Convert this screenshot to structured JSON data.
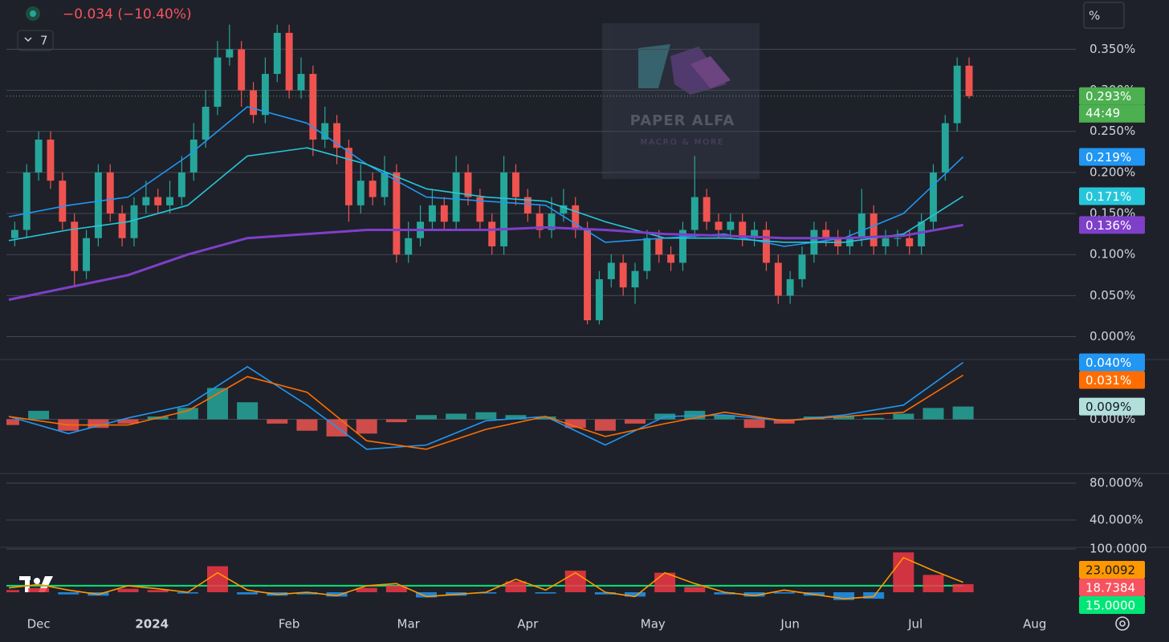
{
  "ui": {
    "change": "−0.034 (−10.40%)",
    "indicators": "7",
    "scale_mode": "%",
    "watermark_title": "PAPER ALFA",
    "watermark_subtitle": "MACRO & MORE"
  },
  "chart_data": [
    {
      "type": "candlestick",
      "xlim": [
        -0.4,
        178.9
      ],
      "xticks": [
        {
          "value": 5,
          "label": "Dec"
        },
        {
          "value": 24,
          "label": "2024"
        },
        {
          "value": 47,
          "label": "Feb"
        },
        {
          "value": 67,
          "label": "Mar"
        },
        {
          "value": 87,
          "label": "Apr"
        },
        {
          "value": 108,
          "label": "May"
        },
        {
          "value": 131,
          "label": "Jun"
        },
        {
          "value": 152,
          "label": "Jul"
        },
        {
          "value": 172,
          "label": "Aug"
        }
      ],
      "ylim": [
        -0.02,
        0.41
      ],
      "yticks": [
        {
          "value": 0.35,
          "label": "0.350%"
        },
        {
          "value": 0.3,
          "label": "0.300%"
        },
        {
          "value": 0.25,
          "label": "0.250%"
        },
        {
          "value": 0.2,
          "label": "0.200%"
        },
        {
          "value": 0.15,
          "label": "0.150%"
        },
        {
          "value": 0.1,
          "label": "0.100%"
        },
        {
          "value": 0.05,
          "label": "0.050%"
        },
        {
          "value": 0,
          "label": "0.000%"
        }
      ],
      "grid": true,
      "series": [
        {
          "type": "candlestick",
          "up_color": "#26a69a",
          "down_color": "#ef5350",
          "color": "#4caf50",
          "last_label": "0.293%",
          "countdown": "44:49",
          "x": [
            1,
            3,
            5,
            7,
            9,
            11,
            13,
            15,
            17,
            19,
            21,
            23,
            25,
            27,
            29,
            31,
            33,
            35,
            37,
            39,
            41,
            43,
            45,
            47,
            49,
            51,
            53,
            55,
            57,
            59,
            61,
            63,
            65,
            67,
            69,
            71,
            73,
            75,
            77,
            79,
            81,
            83,
            85,
            87,
            89,
            91,
            93,
            95,
            97,
            99,
            101,
            103,
            105,
            107,
            109,
            111,
            113,
            115,
            117,
            119,
            121,
            123,
            125,
            127,
            129,
            131,
            133,
            135,
            137,
            139,
            141,
            143,
            145,
            147,
            149,
            151,
            153,
            155,
            157,
            159,
            161
          ],
          "open": [
            0.12,
            0.13,
            0.2,
            0.24,
            0.19,
            0.14,
            0.08,
            0.12,
            0.2,
            0.15,
            0.12,
            0.16,
            0.17,
            0.16,
            0.17,
            0.2,
            0.24,
            0.28,
            0.34,
            0.35,
            0.3,
            0.27,
            0.32,
            0.37,
            0.3,
            0.32,
            0.24,
            0.26,
            0.23,
            0.16,
            0.19,
            0.17,
            0.2,
            0.1,
            0.12,
            0.14,
            0.16,
            0.14,
            0.2,
            0.17,
            0.14,
            0.11,
            0.2,
            0.17,
            0.15,
            0.13,
            0.15,
            0.16,
            0.13,
            0.02,
            0.07,
            0.09,
            0.06,
            0.08,
            0.12,
            0.1,
            0.09,
            0.13,
            0.17,
            0.14,
            0.13,
            0.14,
            0.12,
            0.13,
            0.09,
            0.05,
            0.07,
            0.1,
            0.13,
            0.12,
            0.11,
            0.12,
            0.15,
            0.11,
            0.12,
            0.12,
            0.11,
            0.14,
            0.2,
            0.26,
            0.33
          ],
          "high": [
            0.14,
            0.21,
            0.25,
            0.25,
            0.2,
            0.15,
            0.13,
            0.21,
            0.21,
            0.16,
            0.17,
            0.19,
            0.18,
            0.19,
            0.22,
            0.26,
            0.3,
            0.36,
            0.38,
            0.36,
            0.31,
            0.34,
            0.38,
            0.38,
            0.34,
            0.33,
            0.28,
            0.27,
            0.24,
            0.21,
            0.2,
            0.22,
            0.21,
            0.14,
            0.16,
            0.18,
            0.17,
            0.22,
            0.21,
            0.18,
            0.15,
            0.22,
            0.21,
            0.18,
            0.16,
            0.17,
            0.18,
            0.17,
            0.14,
            0.08,
            0.1,
            0.1,
            0.09,
            0.13,
            0.13,
            0.11,
            0.14,
            0.22,
            0.18,
            0.15,
            0.15,
            0.15,
            0.14,
            0.14,
            0.1,
            0.08,
            0.11,
            0.14,
            0.14,
            0.13,
            0.13,
            0.18,
            0.16,
            0.13,
            0.13,
            0.13,
            0.15,
            0.21,
            0.27,
            0.34,
            0.34
          ],
          "low": [
            0.11,
            0.12,
            0.19,
            0.18,
            0.13,
            0.06,
            0.07,
            0.11,
            0.14,
            0.11,
            0.11,
            0.15,
            0.15,
            0.15,
            0.16,
            0.19,
            0.23,
            0.27,
            0.33,
            0.28,
            0.26,
            0.26,
            0.31,
            0.29,
            0.29,
            0.22,
            0.23,
            0.21,
            0.14,
            0.15,
            0.16,
            0.16,
            0.09,
            0.09,
            0.11,
            0.13,
            0.13,
            0.13,
            0.16,
            0.13,
            0.1,
            0.1,
            0.16,
            0.14,
            0.12,
            0.12,
            0.14,
            0.12,
            0.015,
            0.015,
            0.06,
            0.05,
            0.04,
            0.07,
            0.09,
            0.08,
            0.08,
            0.12,
            0.13,
            0.12,
            0.12,
            0.11,
            0.11,
            0.08,
            0.04,
            0.04,
            0.06,
            0.09,
            0.11,
            0.1,
            0.1,
            0.11,
            0.1,
            0.1,
            0.11,
            0.1,
            0.1,
            0.13,
            0.19,
            0.25,
            0.29
          ],
          "close": [
            0.13,
            0.2,
            0.24,
            0.19,
            0.14,
            0.08,
            0.12,
            0.2,
            0.15,
            0.12,
            0.16,
            0.17,
            0.16,
            0.17,
            0.2,
            0.24,
            0.28,
            0.34,
            0.35,
            0.3,
            0.27,
            0.32,
            0.37,
            0.3,
            0.32,
            0.24,
            0.26,
            0.23,
            0.16,
            0.19,
            0.17,
            0.2,
            0.1,
            0.12,
            0.14,
            0.16,
            0.14,
            0.2,
            0.17,
            0.14,
            0.11,
            0.2,
            0.17,
            0.15,
            0.13,
            0.15,
            0.16,
            0.13,
            0.02,
            0.07,
            0.09,
            0.06,
            0.08,
            0.12,
            0.1,
            0.09,
            0.13,
            0.17,
            0.14,
            0.13,
            0.14,
            0.12,
            0.13,
            0.09,
            0.05,
            0.07,
            0.1,
            0.13,
            0.12,
            0.11,
            0.12,
            0.15,
            0.11,
            0.12,
            0.12,
            0.11,
            0.14,
            0.2,
            0.26,
            0.33,
            0.293
          ]
        },
        {
          "type": "line",
          "color": "#2196f3",
          "last_label": "0.219%",
          "x": [
            0,
            10,
            20,
            30,
            40,
            50,
            60,
            70,
            80,
            90,
            100,
            110,
            120,
            130,
            140,
            150,
            160
          ],
          "values": [
            0.146,
            0.16,
            0.17,
            0.22,
            0.28,
            0.26,
            0.21,
            0.17,
            0.165,
            0.16,
            0.115,
            0.12,
            0.125,
            0.11,
            0.12,
            0.15,
            0.219
          ]
        },
        {
          "type": "line",
          "color": "#26c6da",
          "last_label": "0.171%",
          "x": [
            0,
            10,
            20,
            30,
            40,
            50,
            60,
            70,
            80,
            90,
            100,
            110,
            120,
            130,
            140,
            150,
            160
          ],
          "values": [
            0.117,
            0.13,
            0.14,
            0.16,
            0.22,
            0.23,
            0.21,
            0.18,
            0.17,
            0.165,
            0.14,
            0.12,
            0.12,
            0.115,
            0.115,
            0.125,
            0.171
          ]
        },
        {
          "type": "line",
          "color": "#7e3fc9",
          "width": 3,
          "last_label": "0.136%",
          "x": [
            0,
            10,
            20,
            30,
            40,
            50,
            60,
            70,
            80,
            90,
            100,
            110,
            120,
            130,
            140,
            150,
            160
          ],
          "values": [
            0.045,
            0.06,
            0.075,
            0.1,
            0.12,
            0.125,
            0.13,
            0.13,
            0.13,
            0.133,
            0.13,
            0.125,
            0.123,
            0.12,
            0.12,
            0.123,
            0.136
          ]
        }
      ]
    },
    {
      "type": "line",
      "ylim": [
        -0.038,
        0.042
      ],
      "yticks": [
        {
          "value": 0,
          "label": "0.000%"
        }
      ],
      "grid": true,
      "series": [
        {
          "type": "histogram",
          "color": "#26a69a",
          "neg_color": "#ef5350",
          "badge_color": "#b2dfdb",
          "last_label": "0.009%",
          "x": [
            0,
            5,
            10,
            15,
            20,
            25,
            30,
            35,
            40,
            45,
            50,
            55,
            60,
            65,
            70,
            75,
            80,
            85,
            90,
            95,
            100,
            105,
            110,
            115,
            120,
            125,
            130,
            135,
            140,
            145,
            150,
            155,
            160
          ],
          "values": [
            -0.004,
            0.006,
            -0.008,
            -0.006,
            -0.003,
            0.002,
            0.008,
            0.022,
            0.012,
            -0.003,
            -0.008,
            -0.012,
            -0.01,
            -0.002,
            0.003,
            0.004,
            0.005,
            0.003,
            0.002,
            -0.006,
            -0.008,
            -0.003,
            0.004,
            0.006,
            0.003,
            -0.006,
            -0.003,
            0.002,
            0.002,
            0.001,
            0.004,
            0.008,
            0.009
          ]
        },
        {
          "type": "line",
          "color": "#2196f3",
          "last_label": "0.040%",
          "x": [
            0,
            10,
            20,
            30,
            40,
            50,
            60,
            70,
            80,
            90,
            100,
            110,
            120,
            130,
            140,
            150,
            160
          ],
          "values": [
            0.002,
            -0.01,
            0.001,
            0.01,
            0.037,
            0.01,
            -0.021,
            -0.018,
            -0.001,
            0.002,
            -0.018,
            0.002,
            0.003,
            -0.001,
            0.003,
            0.01,
            0.04
          ]
        },
        {
          "type": "line",
          "color": "#ff6d00",
          "last_label": "0.031%",
          "x": [
            0,
            10,
            20,
            30,
            40,
            50,
            60,
            70,
            80,
            90,
            100,
            110,
            120,
            130,
            140,
            150,
            160
          ],
          "values": [
            0.002,
            -0.004,
            -0.004,
            0.006,
            0.03,
            0.019,
            -0.015,
            -0.021,
            -0.007,
            0.002,
            -0.012,
            -0.003,
            0.005,
            -0.001,
            0.002,
            0.005,
            0.031
          ]
        }
      ]
    },
    {
      "type": "line",
      "ylim": [
        10.4,
        90.4
      ],
      "yticks": [
        {
          "value": 80,
          "label": "80.000%"
        },
        {
          "value": 40,
          "label": "40.000%"
        }
      ],
      "grid": true,
      "series": []
    },
    {
      "type": "line",
      "ylim": [
        -50,
        103.7
      ],
      "yticks": [
        {
          "value": 100,
          "label": "100.0000"
        }
      ],
      "grid": true,
      "hline": {
        "value": 15,
        "label": "15.0000",
        "color": "#00e676"
      },
      "series": [
        {
          "type": "histogram",
          "color": "#f23645",
          "neg_color": "#2196f3",
          "badge_color": "#f7525f",
          "last_label": "18.7384",
          "x": [
            0,
            5,
            10,
            15,
            20,
            25,
            30,
            35,
            40,
            45,
            50,
            55,
            60,
            65,
            70,
            75,
            80,
            85,
            90,
            95,
            100,
            105,
            110,
            115,
            120,
            125,
            130,
            135,
            140,
            145,
            150,
            155,
            160
          ],
          "values": [
            5,
            10,
            -5,
            -8,
            8,
            5,
            -3,
            60,
            -5,
            -8,
            -5,
            -10,
            10,
            15,
            -12,
            -8,
            -3,
            25,
            -3,
            50,
            -5,
            -10,
            45,
            12,
            -5,
            -10,
            -3,
            -8,
            -18,
            -15,
            92,
            40,
            18.7384
          ]
        },
        {
          "type": "line",
          "color": "#ff9800",
          "last_label": "23.0092",
          "x": [
            0,
            5,
            10,
            15,
            20,
            25,
            30,
            35,
            40,
            45,
            50,
            55,
            60,
            65,
            70,
            75,
            80,
            85,
            90,
            95,
            100,
            105,
            110,
            115,
            120,
            125,
            130,
            135,
            140,
            145,
            150,
            155,
            160
          ],
          "values": [
            10,
            18,
            5,
            -5,
            15,
            8,
            0,
            45,
            5,
            -5,
            0,
            -8,
            15,
            20,
            -10,
            -5,
            0,
            30,
            5,
            45,
            0,
            -10,
            45,
            20,
            0,
            -8,
            5,
            -5,
            -15,
            -10,
            80,
            50,
            23.0092
          ]
        }
      ]
    }
  ]
}
